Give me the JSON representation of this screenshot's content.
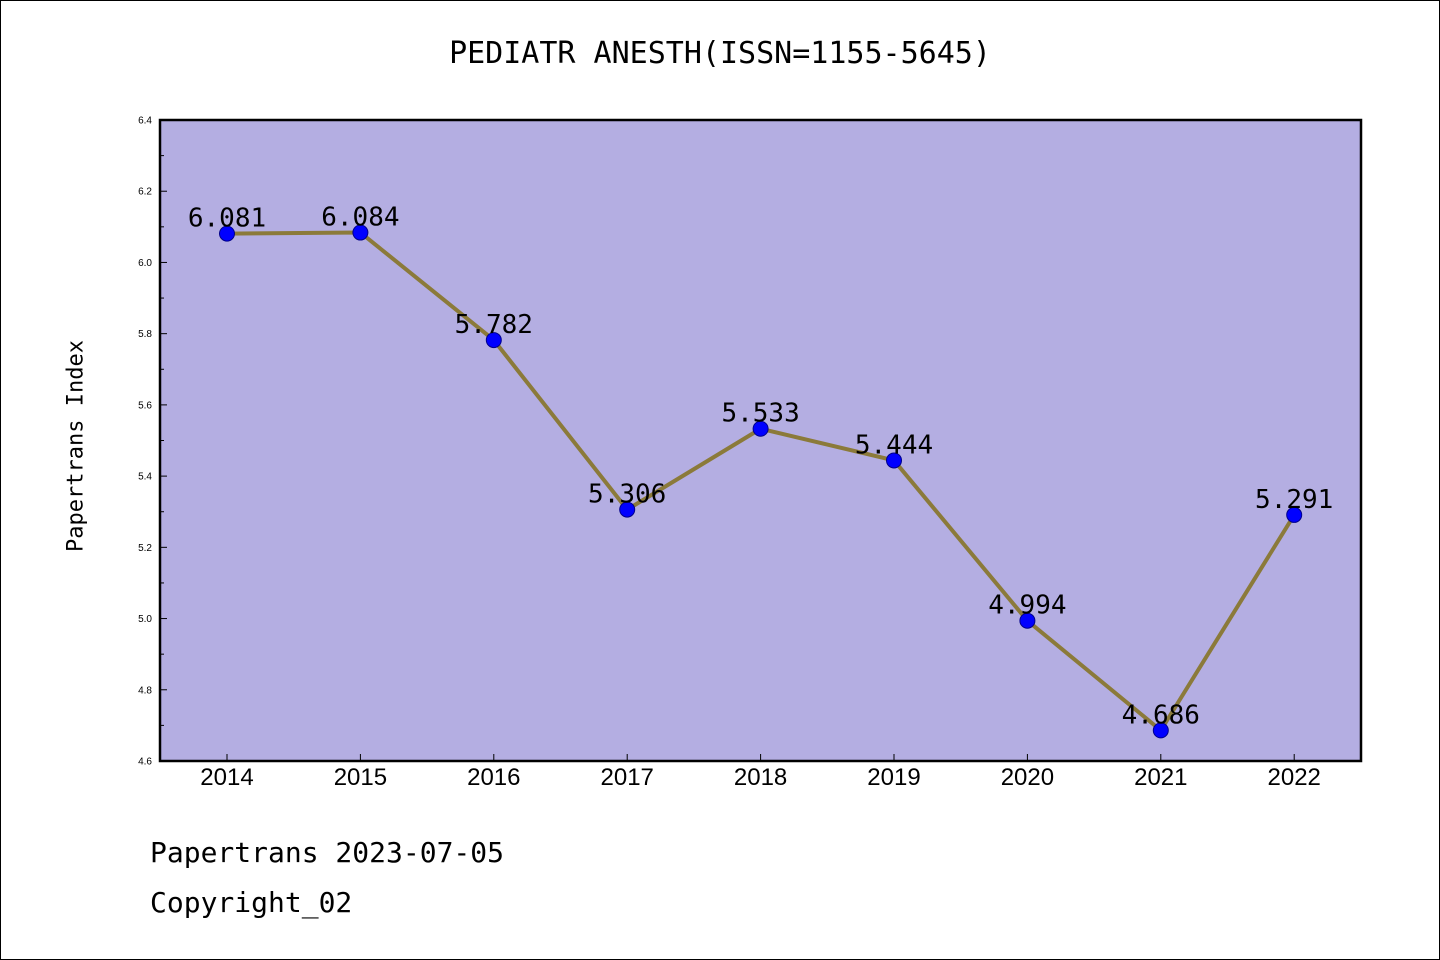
{
  "title": "PEDIATR ANESTH(ISSN=1155-5645)",
  "ylabel": "Papertrans Index",
  "footer": {
    "line1": "Papertrans 2023-07-05",
    "line2": "Copyright_02"
  },
  "colors": {
    "plot_bg": "#b4aee2",
    "line": "#8b7a3a",
    "marker": "#0000ff"
  },
  "chart_data": {
    "type": "line",
    "title": "PEDIATR ANESTH(ISSN=1155-5645)",
    "xlabel": "",
    "ylabel": "Papertrans Index",
    "categories": [
      "2014",
      "2015",
      "2016",
      "2017",
      "2018",
      "2019",
      "2020",
      "2021",
      "2022"
    ],
    "values": [
      6.081,
      6.084,
      5.782,
      5.306,
      5.533,
      5.444,
      4.994,
      4.686,
      5.291
    ],
    "data_labels": [
      "6.081",
      "6.084",
      "5.782",
      "5.306",
      "5.533",
      "5.444",
      "4.994",
      "4.686",
      "5.291"
    ],
    "ylim": [
      4.6,
      6.4
    ],
    "yticks": [
      "4.6",
      "4.8",
      "5.0",
      "5.2",
      "5.4",
      "5.6",
      "5.8",
      "6.0",
      "6.2",
      "6.4"
    ],
    "grid": false
  }
}
